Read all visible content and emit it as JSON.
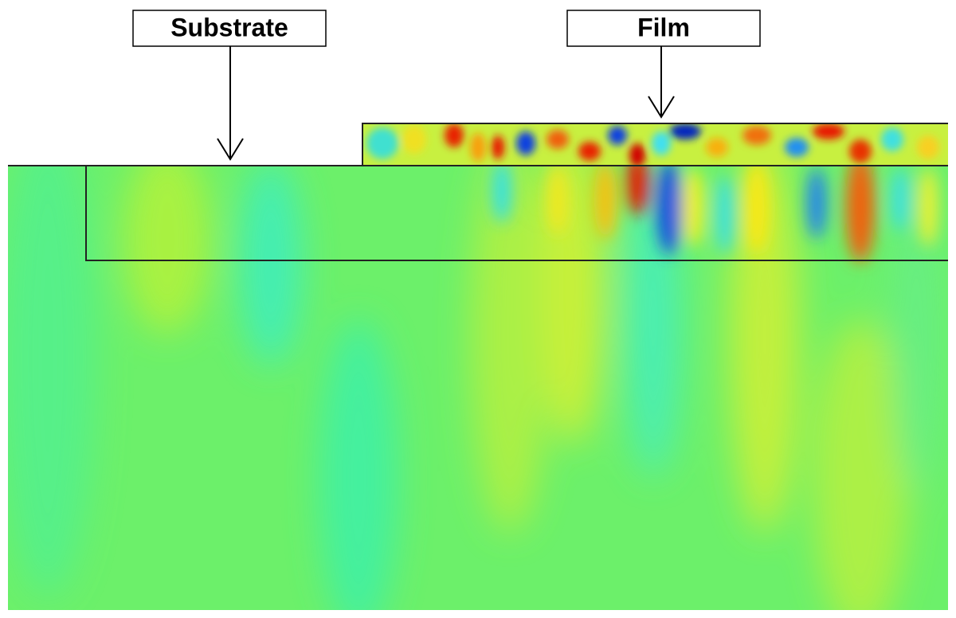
{
  "labels": [
    {
      "text": "Substrate"
    },
    {
      "text": "Film"
    }
  ]
}
